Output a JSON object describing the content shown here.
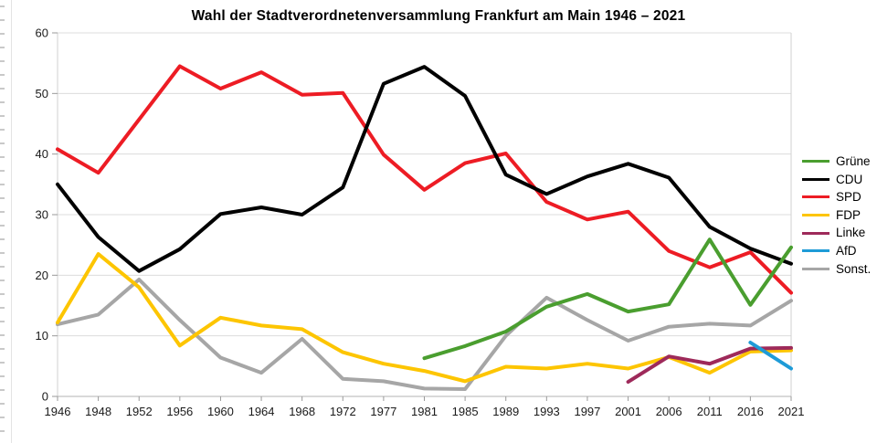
{
  "title": "Wahl der Stadtverordnetenversammlung Frankfurt am Main 1946 – 2021",
  "chart_data": {
    "type": "line",
    "title": "Wahl der Stadtverordnetenversammlung Frankfurt am Main 1946 – 2021",
    "categories": [
      "1946",
      "1948",
      "1952",
      "1956",
      "1960",
      "1964",
      "1968",
      "1972",
      "1977",
      "1981",
      "1985",
      "1989",
      "1993",
      "1997",
      "2001",
      "2006",
      "2011",
      "2016",
      "2021"
    ],
    "ylabel": "",
    "xlabel": "",
    "ylim": [
      0,
      60
    ],
    "y_ticks": [
      0,
      10,
      20,
      30,
      40,
      50,
      60
    ],
    "grid": "horizontal",
    "legend_position": "right",
    "series": [
      {
        "name": "Grüne",
        "color": "#4a9e2f",
        "values": [
          null,
          null,
          null,
          null,
          null,
          null,
          null,
          null,
          null,
          6.3,
          8.3,
          10.7,
          14.8,
          16.9,
          14.0,
          15.2,
          25.9,
          15.1,
          24.6
        ]
      },
      {
        "name": "CDU",
        "color": "#000000",
        "values": [
          35.0,
          26.3,
          20.7,
          24.3,
          30.1,
          31.2,
          30.0,
          34.5,
          51.6,
          54.4,
          49.6,
          36.6,
          33.4,
          36.3,
          38.4,
          36.1,
          28.0,
          24.4,
          21.9
        ]
      },
      {
        "name": "SPD",
        "color": "#ed1c24",
        "values": [
          40.8,
          36.9,
          45.7,
          54.5,
          50.8,
          53.5,
          49.8,
          50.1,
          39.9,
          34.1,
          38.5,
          40.1,
          32.1,
          29.2,
          30.5,
          24.0,
          21.3,
          23.8,
          17.1
        ]
      },
      {
        "name": "FDP",
        "color": "#fdc500",
        "values": [
          12.2,
          23.5,
          18.0,
          8.4,
          13.0,
          11.7,
          11.1,
          7.3,
          5.4,
          4.2,
          2.5,
          4.9,
          4.6,
          5.4,
          4.6,
          6.5,
          3.9,
          7.4,
          7.6
        ]
      },
      {
        "name": "Linke",
        "color": "#9e2a5a",
        "values": [
          null,
          null,
          null,
          null,
          null,
          null,
          null,
          null,
          null,
          null,
          null,
          null,
          null,
          null,
          2.4,
          6.6,
          5.4,
          7.9,
          8.0
        ]
      },
      {
        "name": "AfD",
        "color": "#1e9bd7",
        "values": [
          null,
          null,
          null,
          null,
          null,
          null,
          null,
          null,
          null,
          null,
          null,
          null,
          null,
          null,
          null,
          null,
          null,
          8.9,
          4.6
        ]
      },
      {
        "name": "Sonst.",
        "color": "#a6a6a6",
        "values": [
          11.9,
          13.5,
          19.3,
          12.6,
          6.4,
          3.9,
          9.5,
          2.9,
          2.5,
          1.3,
          1.2,
          10.0,
          16.3,
          12.6,
          9.2,
          11.5,
          12.0,
          11.7,
          15.8
        ]
      }
    ],
    "draw_order": [
      "Sonst.",
      "FDP",
      "SPD",
      "CDU",
      "Grüne",
      "Linke",
      "AfD"
    ]
  },
  "style_colors": {
    "gridline": "#dcdcdc",
    "plot_border": "#d2d2d2",
    "axis_line": "#b3b3b3",
    "tick_mark": "#9a9a9a",
    "tick_label": "#1a1a1a"
  }
}
